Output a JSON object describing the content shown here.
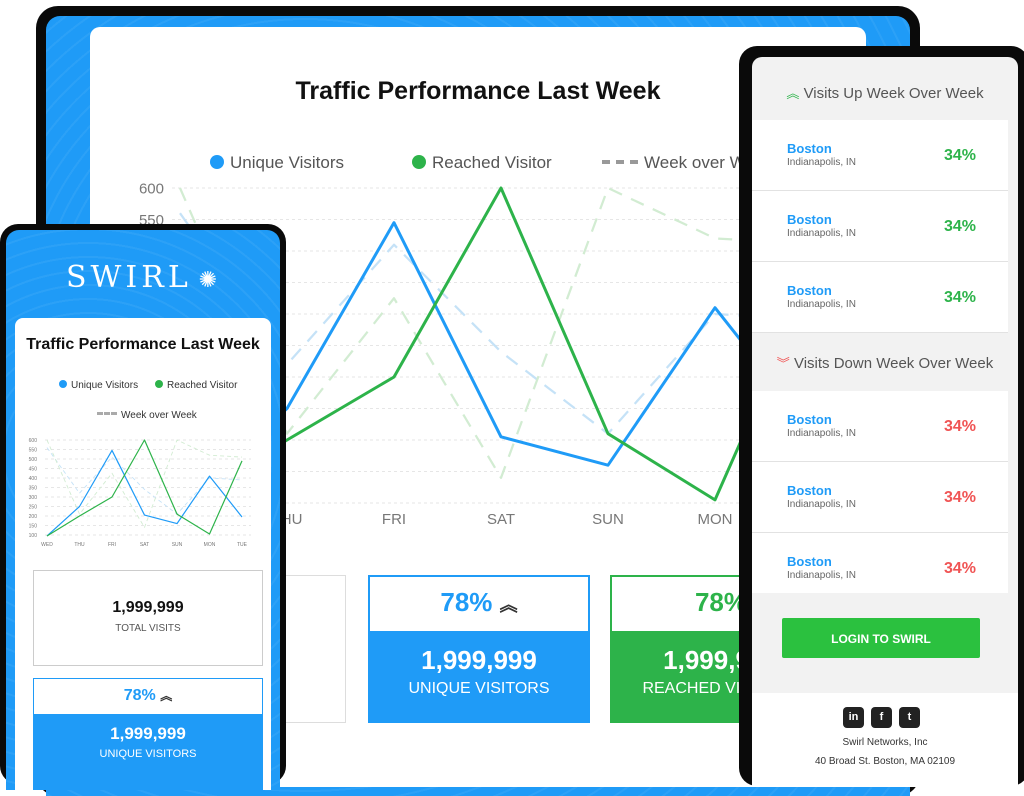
{
  "colors": {
    "brand_blue": "#1f9bf7",
    "green": "#2db34a",
    "red": "#f05454",
    "dark": "#0a0a0a"
  },
  "big": {
    "title": "Traffic Performance Last Week",
    "legend": {
      "unique": "Unique Visitors",
      "reached": "Reached Visitor",
      "wow": "Week over Week"
    },
    "stats": [
      {
        "value": "1,999,999",
        "label": "TOTAL VISITS"
      },
      {
        "pct": "78%",
        "value": "1,999,999",
        "label": "UNIQUE VISITORS"
      },
      {
        "pct": "78%",
        "value": "1,999,999",
        "label": "REACHED VISITORS"
      }
    ]
  },
  "small": {
    "logo": "SWIRL",
    "title": "Traffic Performance Last Week",
    "legend": {
      "unique": "Unique Visitors",
      "reached": "Reached Visitor",
      "wow": "Week over Week"
    },
    "stats": [
      {
        "value": "1,999,999",
        "label": "TOTAL VISITS"
      },
      {
        "pct": "78%",
        "value": "1,999,999",
        "label": "UNIQUE VISITORS"
      }
    ]
  },
  "right": {
    "up_title": "Visits Up Week Over Week",
    "down_title": "Visits Down Week Over Week",
    "up_rows": [
      {
        "city": "Boston",
        "state": "Indianapolis, IN",
        "pct": "34%"
      },
      {
        "city": "Boston",
        "state": "Indianapolis, IN",
        "pct": "34%"
      },
      {
        "city": "Boston",
        "state": "Indianapolis, IN",
        "pct": "34%"
      }
    ],
    "down_rows": [
      {
        "city": "Boston",
        "state": "Indianapolis, IN",
        "pct": "34%"
      },
      {
        "city": "Boston",
        "state": "Indianapolis, IN",
        "pct": "34%"
      },
      {
        "city": "Boston",
        "state": "Indianapolis, IN",
        "pct": "34%"
      }
    ],
    "login_label": "LOGIN TO SWIRL",
    "company": "Swirl Networks, Inc",
    "address": "40 Broad St. Boston, MA 02109",
    "social_icons": [
      "linkedin-icon",
      "facebook-icon",
      "twitter-icon"
    ]
  },
  "chart_data": {
    "type": "line",
    "categories": [
      "WED",
      "THU",
      "FRI",
      "SAT",
      "SUN",
      "MON",
      "TUE"
    ],
    "ylim": [
      100,
      600
    ],
    "yticks": [
      100,
      150,
      200,
      250,
      300,
      350,
      400,
      450,
      500,
      550,
      600
    ],
    "series": [
      {
        "name": "Unique Visitors",
        "color": "#1f9bf7",
        "values": [
          95,
          250,
          545,
          205,
          160,
          410,
          195
        ]
      },
      {
        "name": "Reached Visitor",
        "color": "#2db34a",
        "values": [
          95,
          200,
          300,
          600,
          210,
          105,
          490
        ]
      },
      {
        "name": "Week over Week",
        "color": "#c5e2f7",
        "dashed": true,
        "values": [
          560,
          320,
          510,
          340,
          210,
          400,
          390
        ]
      },
      {
        "name": "Week over Week",
        "color": "#d2ecd2",
        "dashed": true,
        "values": [
          600,
          210,
          425,
          140,
          600,
          520,
          510
        ]
      }
    ]
  }
}
